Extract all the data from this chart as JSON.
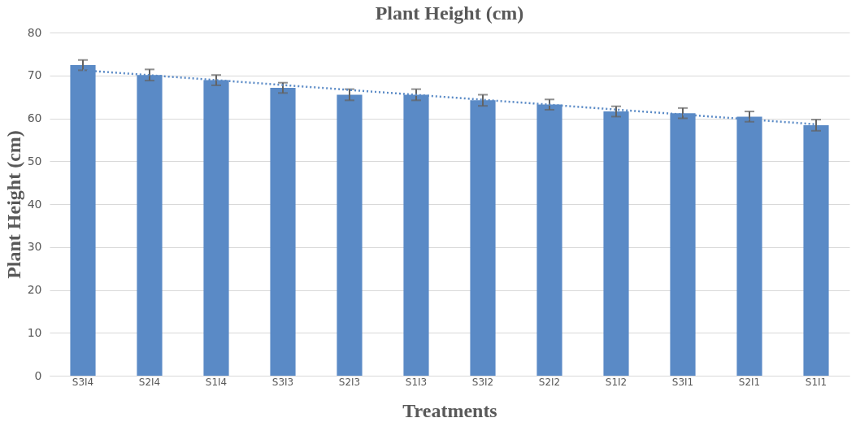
{
  "chart_data": {
    "type": "bar",
    "title": "Plant Height (cm)",
    "xlabel": "Treatments",
    "ylabel": "Plant Height (cm)",
    "categories": [
      "S3I4",
      "S2I4",
      "S1I4",
      "S3I3",
      "S2I3",
      "S1I3",
      "S3I2",
      "S2I2",
      "S1I2",
      "S3I1",
      "S2I1",
      "S1I1"
    ],
    "series": [
      {
        "color": "#5a8ac6",
        "values": [
          72.4,
          70.1,
          68.9,
          67.1,
          65.5,
          65.5,
          64.2,
          63.2,
          61.6,
          61.2,
          60.4,
          58.4
        ],
        "errors": [
          1.2,
          1.3,
          1.2,
          1.2,
          1.3,
          1.3,
          1.3,
          1.2,
          1.2,
          1.2,
          1.2,
          1.3
        ]
      },
      {
        "type": "line",
        "color": "#5a8ac6",
        "line_style": "dotted",
        "x": [
          "S3I4",
          "S1I1"
        ],
        "values": [
          71.2,
          58.6
        ]
      }
    ],
    "ylim": [
      0,
      80
    ],
    "yticks": [
      0,
      10,
      20,
      30,
      40,
      50,
      60,
      70,
      80
    ],
    "grid": "y"
  }
}
